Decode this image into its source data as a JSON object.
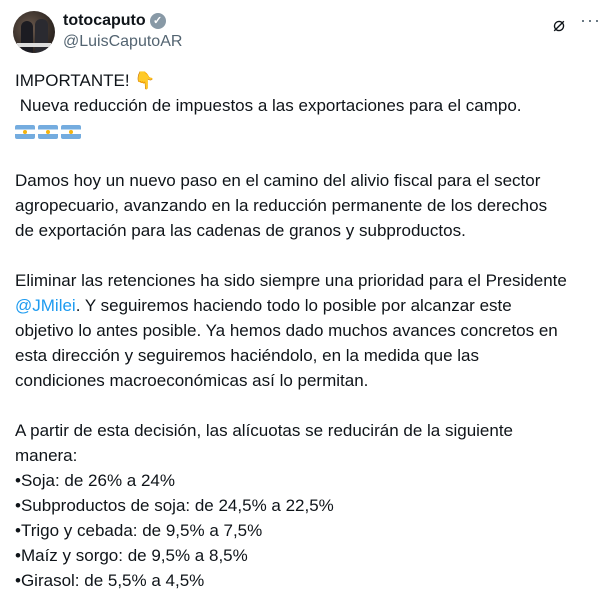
{
  "author": {
    "display_name": "totocaputo",
    "handle": "@LuisCaputoAR",
    "verified": true
  },
  "icons": {
    "grok": "grok-icon",
    "more": "more-icon",
    "badge_color": "#8899a6"
  },
  "tweet": {
    "line1": "IMPORTANTE!",
    "line1_emoji": "👇",
    "line2": " Nueva reducción de impuestos a las exportaciones para el campo.",
    "flags": [
      "🇦🇷",
      "🇦🇷",
      "🇦🇷"
    ],
    "p1": [
      "Damos hoy un nuevo paso en el camino del alivio fiscal para el sector",
      "agropecuario, avanzando en la reducción permanente de los derechos",
      "de exportación para las cadenas de granos y subproductos."
    ],
    "p2_first": "Eliminar las retenciones ha sido siempre una prioridad para el Presidente",
    "mention": "@JMilei",
    "p2_after_mention": ". Y seguiremos haciendo todo lo posible por alcanzar este",
    "p2_rest": [
      "objetivo lo antes posible. Ya hemos dado muchos avances concretos en",
      "esta dirección y seguiremos haciéndolo, en la medida que las",
      "condiciones macroeconómicas así lo permitan."
    ],
    "p3": [
      "A partir de esta decisión, las alícuotas se reducirán de la siguiente",
      "manera:"
    ],
    "items": [
      "•Soja: de 26% a 24%",
      "•Subproductos de soja: de 24,5% a 22,5%",
      "•Trigo y cebada: de 9,5% a 7,5%",
      "•Maíz y sorgo: de 9,5% a 8,5%",
      "•Girasol: de 5,5% a 4,5%"
    ],
    "mention_color": "#1d9bf0"
  }
}
